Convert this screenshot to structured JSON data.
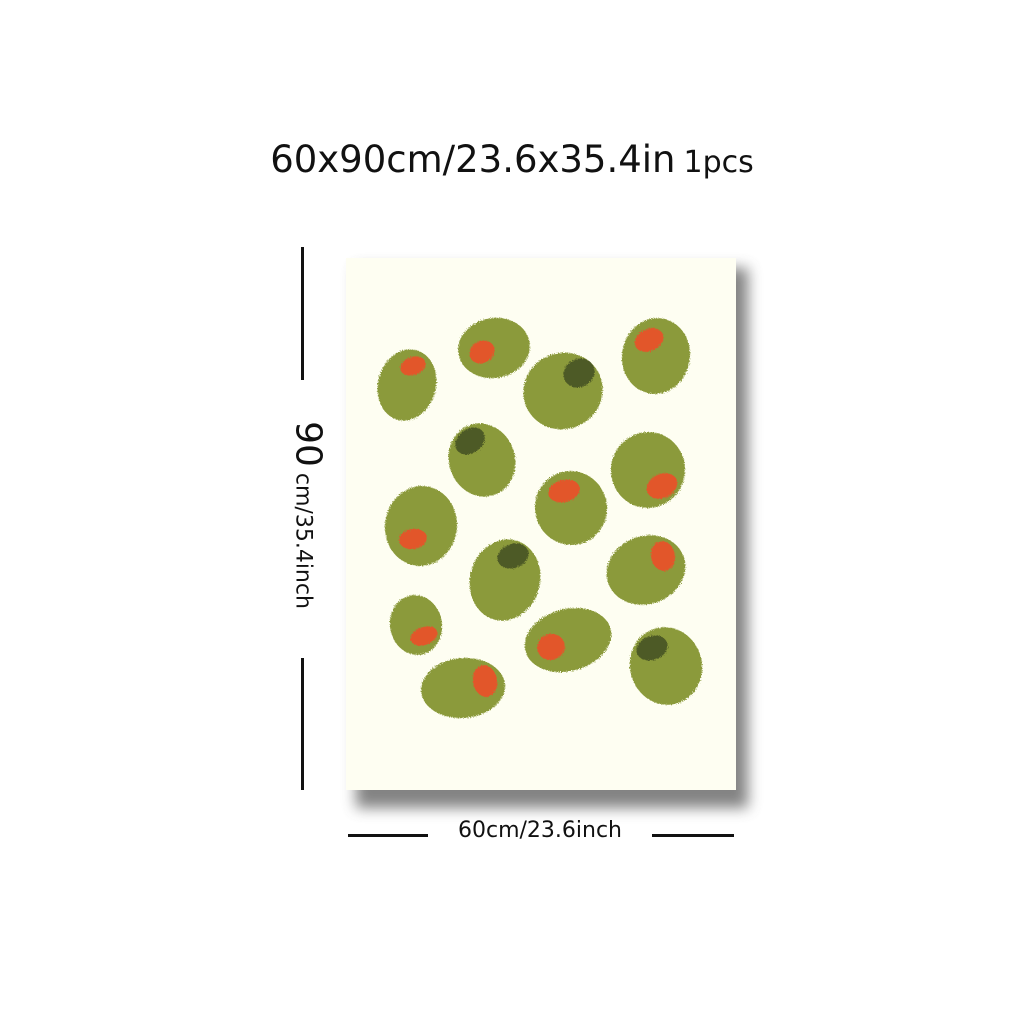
{
  "header": {
    "size_text": "60x90cm/23.6x35.4in",
    "quantity_text": "1pcs"
  },
  "dimensions": {
    "height_value": "90",
    "height_unit": "cm/35.4inch",
    "width_text": "60cm/23.6inch"
  },
  "artwork": {
    "subject": "green olives with pimento",
    "colors": {
      "background": "#fefef2",
      "olive": "#8b9a3a",
      "olive_dark": "#5c6a24",
      "pimento": "#e2572b",
      "pit_hole": "#4e5a26"
    }
  }
}
